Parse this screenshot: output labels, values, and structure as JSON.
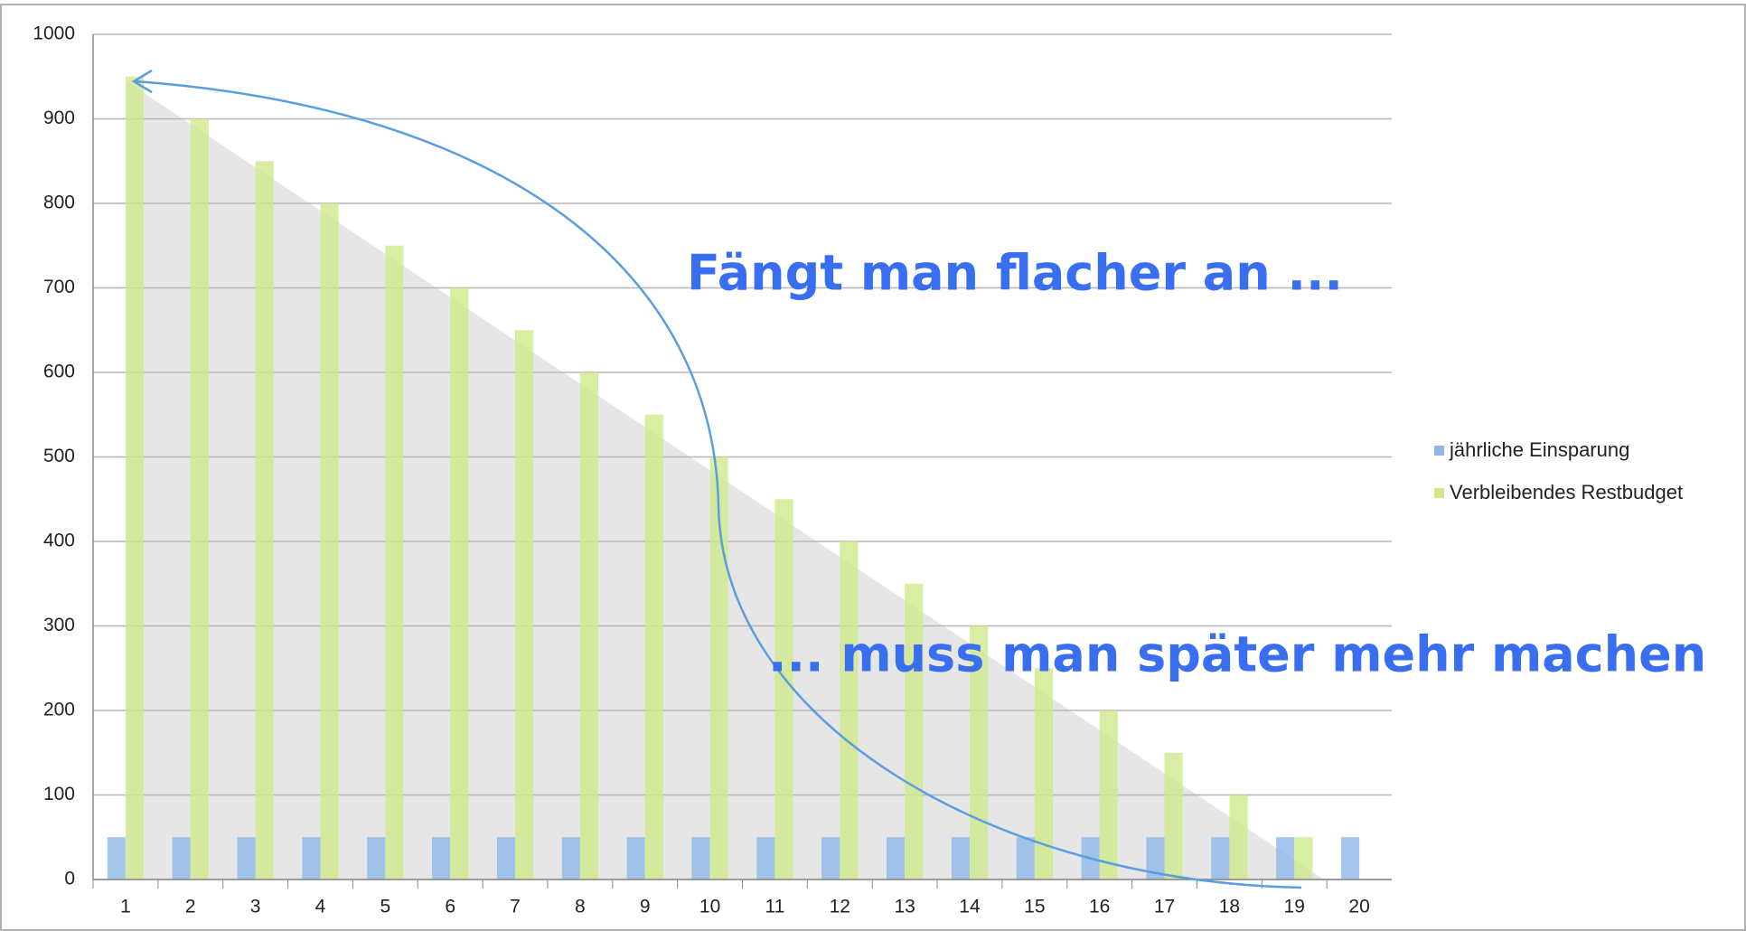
{
  "chart_data": {
    "type": "bar",
    "categories": [
      "1",
      "2",
      "3",
      "4",
      "5",
      "6",
      "7",
      "8",
      "9",
      "10",
      "11",
      "12",
      "13",
      "14",
      "15",
      "16",
      "17",
      "18",
      "19",
      "20"
    ],
    "series": [
      {
        "name": "jährliche Einsparung",
        "color": "#8fb8e8",
        "values": [
          50,
          50,
          50,
          50,
          50,
          50,
          50,
          50,
          50,
          50,
          50,
          50,
          50,
          50,
          50,
          50,
          50,
          50,
          50,
          50
        ]
      },
      {
        "name": "Verbleibendes Restbudget",
        "color": "#cfe88c",
        "values": [
          950,
          900,
          850,
          800,
          750,
          700,
          650,
          600,
          550,
          500,
          450,
          400,
          350,
          300,
          250,
          200,
          150,
          100,
          50,
          0
        ]
      }
    ],
    "ylim": [
      0,
      1000
    ],
    "yticks": [
      0,
      100,
      200,
      300,
      400,
      500,
      600,
      700,
      800,
      900,
      1000
    ],
    "grid": true,
    "annotations": [
      "Fängt man flacher an ...",
      "... muss man später mehr machen"
    ]
  }
}
